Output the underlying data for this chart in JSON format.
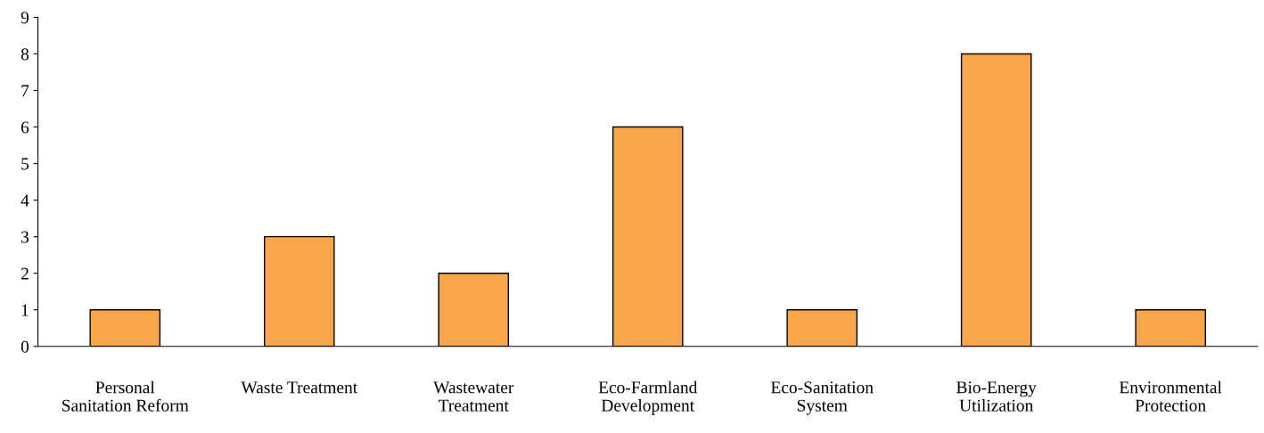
{
  "chart_data": {
    "type": "bar",
    "categories": [
      "Personal\nSanitation Reform",
      "Waste Treatment",
      "Wastewater\nTreatment",
      "Eco-Farmland\nDevelopment",
      "Eco-Sanitation\nSystem",
      "Bio-Energy\nUtilization",
      "Environmental\nProtection"
    ],
    "values": [
      1,
      3,
      2,
      6,
      1,
      8,
      1
    ],
    "color": "#f9a64a",
    "ylim": [
      0,
      9
    ],
    "yticks": [
      0,
      1,
      2,
      3,
      4,
      5,
      6,
      7,
      8,
      9
    ],
    "grid": false,
    "legend": false
  }
}
